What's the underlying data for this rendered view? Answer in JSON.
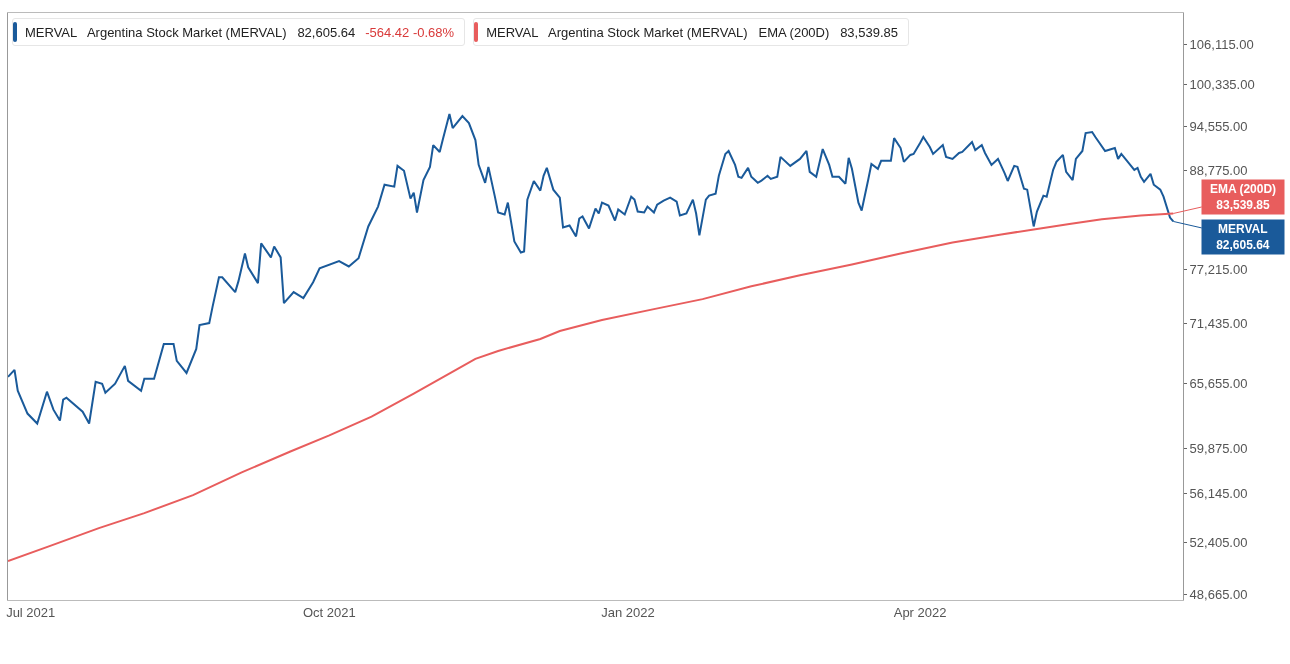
{
  "chart_data": {
    "type": "line",
    "log": "y",
    "grid": false,
    "legend": "top left",
    "marker": "none",
    "line_style": "solid",
    "xlim": [
      "2021-06-24",
      "2022-06-21"
    ],
    "xticks": [
      {
        "value": "2021-07-01",
        "label": "Jul 2021"
      },
      {
        "value": "2021-10-01",
        "label": "Oct 2021"
      },
      {
        "value": "2022-01-01",
        "label": "Jan 2022"
      },
      {
        "value": "2022-04-01",
        "label": "Apr 2022"
      }
    ],
    "ylim": [
      48300,
      111000
    ],
    "yticks": [
      {
        "value": 48665,
        "label": "48,665.00"
      },
      {
        "value": 52405,
        "label": "52,405.00"
      },
      {
        "value": 56145,
        "label": "56,145.00"
      },
      {
        "value": 59875,
        "label": "59,875.00"
      },
      {
        "value": 65655,
        "label": "65,655.00"
      },
      {
        "value": 71435,
        "label": "71,435.00"
      },
      {
        "value": 77215,
        "label": "77,215.00"
      },
      {
        "value": 88775,
        "label": "88,775.00"
      },
      {
        "value": 94555,
        "label": "94,555.00"
      },
      {
        "value": 100335,
        "label": "100,335.00"
      },
      {
        "value": 106115,
        "label": "106,115.00"
      }
    ],
    "series": [
      {
        "name": "MERVAL   Argentina Stock Market (MERVAL)   82,605.64",
        "color": "#1a5a9a",
        "x": [
          "2021-06-24",
          "2021-06-26",
          "2021-06-27",
          "2021-06-30",
          "2021-07-03",
          "2021-07-06",
          "2021-07-08",
          "2021-07-10",
          "2021-07-11",
          "2021-07-12",
          "2021-07-17",
          "2021-07-19",
          "2021-07-21",
          "2021-07-23",
          "2021-07-24",
          "2021-07-27",
          "2021-07-30",
          "2021-07-31",
          "2021-08-04",
          "2021-08-05",
          "2021-08-08",
          "2021-08-11",
          "2021-08-14",
          "2021-08-15",
          "2021-08-18",
          "2021-08-21",
          "2021-08-22",
          "2021-08-25",
          "2021-08-26",
          "2021-08-28",
          "2021-08-29",
          "2021-09-02",
          "2021-09-03",
          "2021-09-05",
          "2021-09-06",
          "2021-09-09",
          "2021-09-10",
          "2021-09-13",
          "2021-09-14",
          "2021-09-16",
          "2021-09-17",
          "2021-09-20",
          "2021-09-23",
          "2021-09-26",
          "2021-09-28",
          "2021-10-04",
          "2021-10-07",
          "2021-10-10",
          "2021-10-13",
          "2021-10-16",
          "2021-10-18",
          "2021-10-21",
          "2021-10-22",
          "2021-10-24",
          "2021-10-26",
          "2021-10-27",
          "2021-10-28",
          "2021-10-30",
          "2021-11-01",
          "2021-11-02",
          "2021-11-04",
          "2021-11-05",
          "2021-11-07",
          "2021-11-08",
          "2021-11-11",
          "2021-11-13",
          "2021-11-15",
          "2021-11-16",
          "2021-11-18",
          "2021-11-19",
          "2021-11-21",
          "2021-11-22",
          "2021-11-24",
          "2021-11-25",
          "2021-11-27",
          "2021-11-29",
          "2021-11-30",
          "2021-12-01",
          "2021-12-03",
          "2021-12-05",
          "2021-12-06",
          "2021-12-07",
          "2021-12-09",
          "2021-12-11",
          "2021-12-12",
          "2021-12-14",
          "2021-12-16",
          "2021-12-17",
          "2021-12-18",
          "2021-12-20",
          "2021-12-22",
          "2021-12-23",
          "2021-12-24",
          "2021-12-26",
          "2021-12-28",
          "2021-12-29",
          "2021-12-31",
          "2022-01-02",
          "2022-01-03",
          "2022-01-04",
          "2022-01-06",
          "2022-01-07",
          "2022-01-09",
          "2022-01-10",
          "2022-01-12",
          "2022-01-14",
          "2022-01-16",
          "2022-01-17",
          "2022-01-19",
          "2022-01-21",
          "2022-01-22",
          "2022-01-23",
          "2022-01-25",
          "2022-01-26",
          "2022-01-28",
          "2022-01-29",
          "2022-01-31",
          "2022-02-01",
          "2022-02-03",
          "2022-02-04",
          "2022-02-05",
          "2022-02-07",
          "2022-02-08",
          "2022-02-10",
          "2022-02-11",
          "2022-02-13",
          "2022-02-14",
          "2022-02-16",
          "2022-02-17",
          "2022-02-20",
          "2022-02-23",
          "2022-02-25",
          "2022-02-26",
          "2022-02-28",
          "2022-03-02",
          "2022-03-04",
          "2022-03-05",
          "2022-03-07",
          "2022-03-09",
          "2022-03-10",
          "2022-03-11",
          "2022-03-13",
          "2022-03-14",
          "2022-03-16",
          "2022-03-17",
          "2022-03-19",
          "2022-03-20",
          "2022-03-23",
          "2022-03-24",
          "2022-03-26",
          "2022-03-27",
          "2022-03-29",
          "2022-03-30",
          "2022-04-01",
          "2022-04-02",
          "2022-04-04",
          "2022-04-05",
          "2022-04-08",
          "2022-04-09",
          "2022-04-11",
          "2022-04-13",
          "2022-04-14",
          "2022-04-17",
          "2022-04-18",
          "2022-04-20",
          "2022-04-21",
          "2022-04-23",
          "2022-04-25",
          "2022-04-27",
          "2022-04-28",
          "2022-04-30",
          "2022-05-01",
          "2022-05-03",
          "2022-05-04",
          "2022-05-06",
          "2022-05-07",
          "2022-05-09",
          "2022-05-10",
          "2022-05-12",
          "2022-05-13",
          "2022-05-15",
          "2022-05-16",
          "2022-05-18",
          "2022-05-19",
          "2022-05-21",
          "2022-05-22",
          "2022-05-24",
          "2022-05-25",
          "2022-05-28",
          "2022-05-31",
          "2022-06-01",
          "2022-06-02",
          "2022-06-06",
          "2022-06-07",
          "2022-06-08",
          "2022-06-09",
          "2022-06-11",
          "2022-06-12",
          "2022-06-14",
          "2022-06-15",
          "2022-06-17",
          "2022-06-18"
        ],
        "values": [
          66270,
          66930,
          64980,
          62910,
          62030,
          64890,
          63260,
          62290,
          64160,
          64340,
          63080,
          62030,
          65810,
          65630,
          64800,
          65630,
          67310,
          65900,
          64980,
          66090,
          66090,
          69440,
          69440,
          67790,
          66640,
          68950,
          71320,
          71520,
          73160,
          76320,
          76320,
          74730,
          75900,
          78940,
          77400,
          75690,
          80070,
          78500,
          79730,
          78500,
          73570,
          74730,
          74100,
          75790,
          77290,
          78080,
          77500,
          78410,
          82020,
          84360,
          87020,
          86780,
          89370,
          88750,
          85320,
          86040,
          83660,
          87600,
          89250,
          92050,
          91150,
          92830,
          96180,
          94290,
          95910,
          94970,
          92700,
          89500,
          87250,
          89250,
          85560,
          83660,
          83420,
          84840,
          80300,
          79050,
          79170,
          85200,
          87480,
          86290,
          88120,
          89120,
          86410,
          85440,
          81910,
          82130,
          80870,
          82950,
          83190,
          81790,
          84130,
          83540,
          84840,
          84480,
          82710,
          84010,
          83420,
          85560,
          85200,
          83770,
          83660,
          84360,
          83660,
          84600,
          85080,
          85440,
          84960,
          83300,
          83540,
          85200,
          83540,
          80990,
          85200,
          85680,
          85920,
          88120,
          90900,
          91280,
          89500,
          88000,
          87870,
          89120,
          88000,
          87250,
          87480,
          88120,
          87740,
          88000,
          90520,
          89370,
          90260,
          91280,
          88620,
          88000,
          91530,
          89500,
          88000,
          88000,
          87140,
          90390,
          89000,
          84840,
          83890,
          87600,
          89620,
          89000,
          90010,
          90010,
          92960,
          91660,
          89880,
          90770,
          90900,
          92310,
          93100,
          91790,
          90900,
          92050,
          90520,
          90260,
          91020,
          91150,
          92440,
          91400,
          92050,
          91020,
          89500,
          90260,
          88500,
          87480,
          89370,
          89250,
          86530,
          86410,
          82020,
          83770,
          85680,
          85560,
          88870,
          89880,
          90770,
          88620,
          87600,
          90260,
          91280,
          93630,
          93770,
          93100,
          91280,
          91660,
          90260,
          90900,
          88870,
          89120,
          88000,
          87370,
          88370,
          87020,
          86410,
          85560,
          83060,
          82605.64
        ]
      },
      {
        "name": "MERVAL   Argentina Stock Market (MERVAL)   EMA (200D)   83,539.85",
        "color": "#e85d5d",
        "x": [
          "2021-06-24",
          "2021-07-07",
          "2021-07-22",
          "2021-08-05",
          "2021-08-20",
          "2021-09-04",
          "2021-09-19",
          "2021-10-01",
          "2021-10-14",
          "2021-10-27",
          "2021-11-09",
          "2021-11-15",
          "2021-11-22",
          "2021-12-05",
          "2021-12-11",
          "2021-12-24",
          "2022-01-09",
          "2022-01-24",
          "2022-02-08",
          "2022-02-23",
          "2022-03-11",
          "2022-03-26",
          "2022-04-11",
          "2022-04-26",
          "2022-05-08",
          "2022-05-17",
          "2022-05-27",
          "2022-06-08",
          "2022-06-18"
        ],
        "values": [
          51050,
          52150,
          53480,
          54630,
          56040,
          57880,
          59620,
          60990,
          62640,
          64710,
          66930,
          67980,
          68750,
          69930,
          70720,
          71830,
          72950,
          73990,
          75350,
          76530,
          77720,
          78940,
          80180,
          81100,
          81780,
          82300,
          82870,
          83300,
          83539.85
        ]
      }
    ],
    "annotations": [
      "-564.42 -0.68%",
      {
        "text": "EMA (200D)\n83,539.85",
        "x": "2022-06-18",
        "y": 83539.85
      },
      {
        "text": "MERVAL\n82,605.64",
        "x": "2022-06-18",
        "y": 82605.64
      }
    ]
  }
}
